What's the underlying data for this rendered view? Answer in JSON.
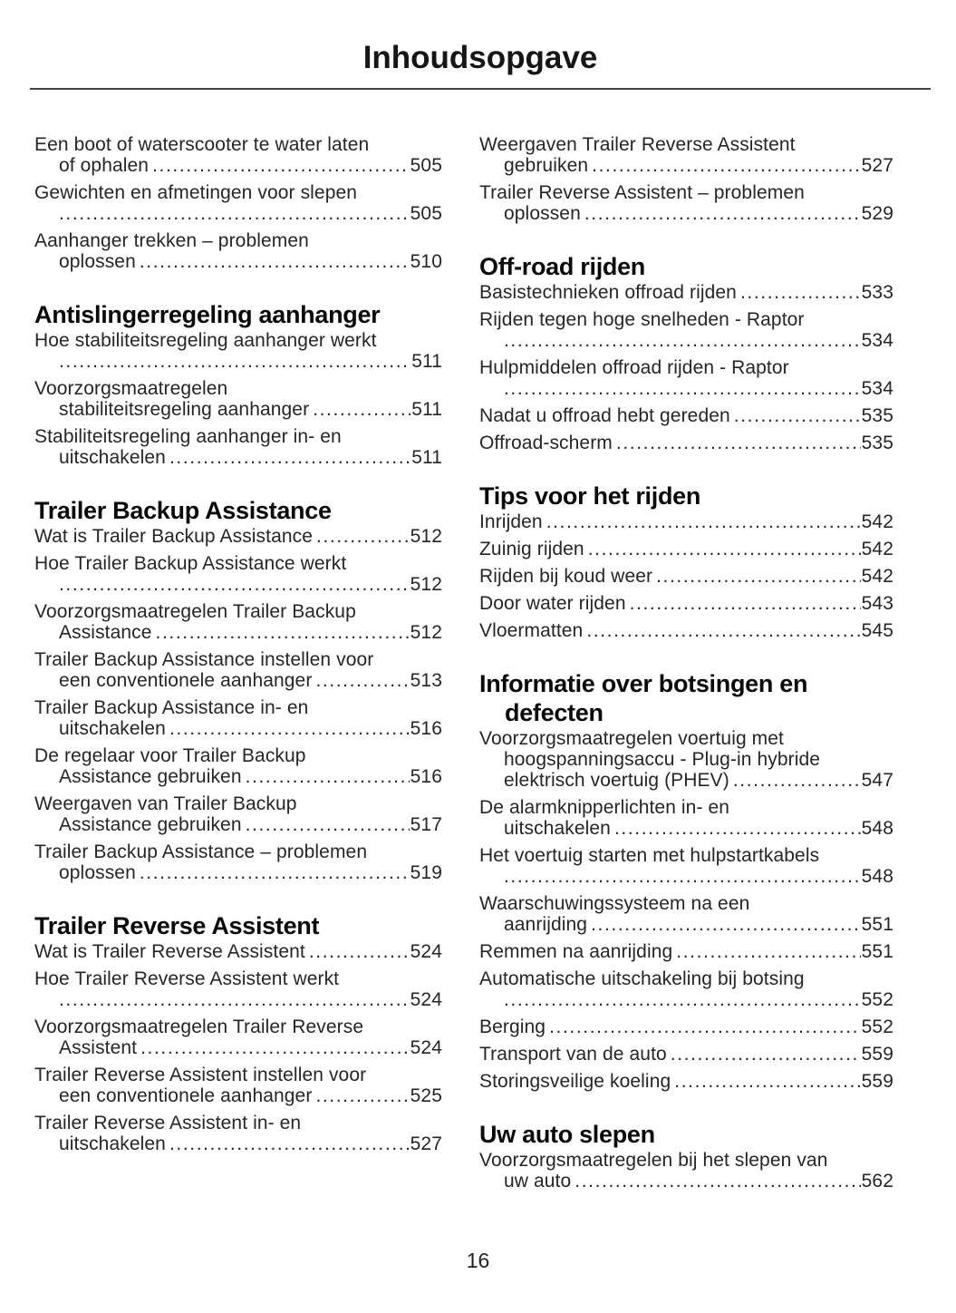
{
  "title": "Inhoudsopgave",
  "page_number": "16",
  "columns": [
    {
      "blocks": [
        {
          "type": "entry",
          "lines": [
            {
              "text": "Een boot of waterscooter te water laten"
            },
            {
              "text": "of ophalen",
              "page": "505",
              "indent": true
            }
          ]
        },
        {
          "type": "entry",
          "lines": [
            {
              "text": "Gewichten en afmetingen voor slepen"
            },
            {
              "text": "",
              "page": "505",
              "indent": true
            }
          ]
        },
        {
          "type": "entry",
          "lines": [
            {
              "text": "Aanhanger trekken – problemen"
            },
            {
              "text": "oplossen",
              "page": "510",
              "indent": true
            }
          ]
        },
        {
          "type": "heading",
          "lines": [
            "Antislingerregeling aanhanger"
          ]
        },
        {
          "type": "entry",
          "lines": [
            {
              "text": "Hoe stabiliteitsregeling aanhanger werkt"
            },
            {
              "text": "",
              "page": "511",
              "indent": true
            }
          ]
        },
        {
          "type": "entry",
          "lines": [
            {
              "text": "Voorzorgsmaatregelen"
            },
            {
              "text": "stabiliteitsregeling aanhanger",
              "page": "511",
              "indent": true
            }
          ]
        },
        {
          "type": "entry",
          "lines": [
            {
              "text": "Stabiliteitsregeling aanhanger in- en"
            },
            {
              "text": "uitschakelen",
              "page": "511",
              "indent": true
            }
          ]
        },
        {
          "type": "heading",
          "lines": [
            "Trailer Backup Assistance"
          ]
        },
        {
          "type": "entry",
          "lines": [
            {
              "text": "Wat is Trailer Backup Assistance",
              "page": "512"
            }
          ]
        },
        {
          "type": "entry",
          "lines": [
            {
              "text": "Hoe Trailer Backup Assistance werkt"
            },
            {
              "text": "",
              "page": "512",
              "indent": true
            }
          ]
        },
        {
          "type": "entry",
          "lines": [
            {
              "text": "Voorzorgsmaatregelen Trailer Backup"
            },
            {
              "text": "Assistance",
              "page": "512",
              "indent": true
            }
          ]
        },
        {
          "type": "entry",
          "lines": [
            {
              "text": "Trailer Backup Assistance instellen voor"
            },
            {
              "text": "een conventionele aanhanger",
              "page": "513",
              "indent": true
            }
          ]
        },
        {
          "type": "entry",
          "lines": [
            {
              "text": "Trailer Backup Assistance in- en"
            },
            {
              "text": "uitschakelen",
              "page": "516",
              "indent": true
            }
          ]
        },
        {
          "type": "entry",
          "lines": [
            {
              "text": "De regelaar voor Trailer Backup"
            },
            {
              "text": "Assistance gebruiken",
              "page": "516",
              "indent": true
            }
          ]
        },
        {
          "type": "entry",
          "lines": [
            {
              "text": "Weergaven van Trailer Backup"
            },
            {
              "text": "Assistance gebruiken",
              "page": "517",
              "indent": true
            }
          ]
        },
        {
          "type": "entry",
          "lines": [
            {
              "text": "Trailer Backup Assistance – problemen"
            },
            {
              "text": "oplossen",
              "page": "519",
              "indent": true
            }
          ]
        },
        {
          "type": "heading",
          "lines": [
            "Trailer Reverse Assistent"
          ]
        },
        {
          "type": "entry",
          "lines": [
            {
              "text": "Wat is Trailer Reverse Assistent",
              "page": "524"
            }
          ]
        },
        {
          "type": "entry",
          "lines": [
            {
              "text": "Hoe Trailer Reverse Assistent werkt"
            },
            {
              "text": "",
              "page": "524",
              "indent": true
            }
          ]
        },
        {
          "type": "entry",
          "lines": [
            {
              "text": "Voorzorgsmaatregelen Trailer Reverse"
            },
            {
              "text": "Assistent",
              "page": "524",
              "indent": true
            }
          ]
        },
        {
          "type": "entry",
          "lines": [
            {
              "text": "Trailer Reverse Assistent instellen voor"
            },
            {
              "text": "een conventionele aanhanger",
              "page": "525",
              "indent": true
            }
          ]
        },
        {
          "type": "entry",
          "lines": [
            {
              "text": "Trailer Reverse Assistent in- en"
            },
            {
              "text": "uitschakelen",
              "page": "527",
              "indent": true
            }
          ]
        }
      ]
    },
    {
      "blocks": [
        {
          "type": "entry",
          "lines": [
            {
              "text": "Weergaven Trailer Reverse Assistent"
            },
            {
              "text": "gebruiken",
              "page": "527",
              "indent": true
            }
          ]
        },
        {
          "type": "entry",
          "lines": [
            {
              "text": "Trailer Reverse Assistent – problemen"
            },
            {
              "text": "oplossen",
              "page": "529",
              "indent": true
            }
          ]
        },
        {
          "type": "heading",
          "lines": [
            "Off-road rijden"
          ]
        },
        {
          "type": "entry",
          "lines": [
            {
              "text": "Basistechnieken offroad rijden",
              "page": "533"
            }
          ]
        },
        {
          "type": "entry",
          "lines": [
            {
              "text": "Rijden tegen hoge snelheden - Raptor"
            },
            {
              "text": "",
              "page": "534",
              "indent": true
            }
          ]
        },
        {
          "type": "entry",
          "lines": [
            {
              "text": "Hulpmiddelen offroad rijden - Raptor"
            },
            {
              "text": "",
              "page": "534",
              "indent": true
            }
          ]
        },
        {
          "type": "entry",
          "lines": [
            {
              "text": "Nadat u offroad hebt gereden",
              "page": "535"
            }
          ]
        },
        {
          "type": "entry",
          "lines": [
            {
              "text": "Offroad-scherm",
              "page": "535"
            }
          ]
        },
        {
          "type": "heading",
          "lines": [
            "Tips voor het rijden"
          ]
        },
        {
          "type": "entry",
          "lines": [
            {
              "text": "Inrijden",
              "page": "542"
            }
          ]
        },
        {
          "type": "entry",
          "lines": [
            {
              "text": "Zuinig rijden",
              "page": "542"
            }
          ]
        },
        {
          "type": "entry",
          "lines": [
            {
              "text": "Rijden bij koud weer",
              "page": "542"
            }
          ]
        },
        {
          "type": "entry",
          "lines": [
            {
              "text": "Door water rijden",
              "page": "543"
            }
          ]
        },
        {
          "type": "entry",
          "lines": [
            {
              "text": "Vloermatten",
              "page": "545"
            }
          ]
        },
        {
          "type": "heading",
          "lines": [
            "Informatie over botsingen en",
            "defecten"
          ]
        },
        {
          "type": "entry",
          "lines": [
            {
              "text": "Voorzorgsmaatregelen voertuig met"
            },
            {
              "text": "hoogspanningsaccu - Plug-in hybride",
              "indent": true
            },
            {
              "text": "elektrisch voertuig (PHEV)",
              "page": "547",
              "indent": true
            }
          ]
        },
        {
          "type": "entry",
          "lines": [
            {
              "text": "De alarmknipperlichten in- en"
            },
            {
              "text": "uitschakelen",
              "page": "548",
              "indent": true
            }
          ]
        },
        {
          "type": "entry",
          "lines": [
            {
              "text": "Het voertuig starten met hulpstartkabels"
            },
            {
              "text": "",
              "page": "548",
              "indent": true
            }
          ]
        },
        {
          "type": "entry",
          "lines": [
            {
              "text": "Waarschuwingssysteem na een"
            },
            {
              "text": "aanrijding",
              "page": "551",
              "indent": true
            }
          ]
        },
        {
          "type": "entry",
          "lines": [
            {
              "text": "Remmen na aanrijding",
              "page": "551"
            }
          ]
        },
        {
          "type": "entry",
          "lines": [
            {
              "text": "Automatische uitschakeling bij botsing"
            },
            {
              "text": "",
              "page": "552",
              "indent": true
            }
          ]
        },
        {
          "type": "entry",
          "lines": [
            {
              "text": "Berging",
              "page": "552"
            }
          ]
        },
        {
          "type": "entry",
          "lines": [
            {
              "text": "Transport van de auto",
              "page": "559"
            }
          ]
        },
        {
          "type": "entry",
          "lines": [
            {
              "text": "Storingsveilige koeling",
              "page": "559"
            }
          ]
        },
        {
          "type": "heading",
          "lines": [
            "Uw auto slepen"
          ]
        },
        {
          "type": "entry",
          "lines": [
            {
              "text": "Voorzorgsmaatregelen bij het slepen van"
            },
            {
              "text": "uw auto",
              "page": "562",
              "indent": true
            }
          ]
        }
      ]
    }
  ]
}
